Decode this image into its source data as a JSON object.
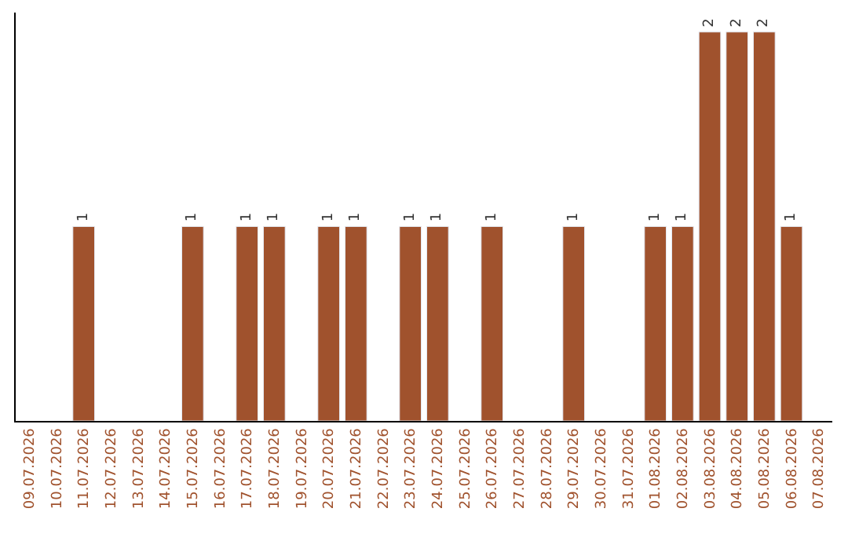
{
  "chart_data": {
    "type": "bar",
    "categories": [
      "09.07.2026",
      "10.07.2026",
      "11.07.2026",
      "12.07.2026",
      "13.07.2026",
      "14.07.2026",
      "15.07.2026",
      "16.07.2026",
      "17.07.2026",
      "18.07.2026",
      "19.07.2026",
      "20.07.2026",
      "21.07.2026",
      "22.07.2026",
      "23.07.2026",
      "24.07.2026",
      "25.07.2026",
      "26.07.2026",
      "27.07.2026",
      "28.07.2026",
      "29.07.2026",
      "30.07.2026",
      "31.07.2026",
      "01.08.2026",
      "02.08.2026",
      "03.08.2026",
      "04.08.2026",
      "05.08.2026",
      "06.08.2026",
      "07.08.2026"
    ],
    "values": [
      null,
      null,
      1,
      null,
      null,
      null,
      1,
      null,
      1,
      1,
      null,
      1,
      1,
      null,
      1,
      1,
      null,
      1,
      null,
      null,
      1,
      null,
      null,
      1,
      1,
      2,
      2,
      2,
      1,
      null
    ],
    "color": "#a0522d",
    "data_labels": true
  }
}
